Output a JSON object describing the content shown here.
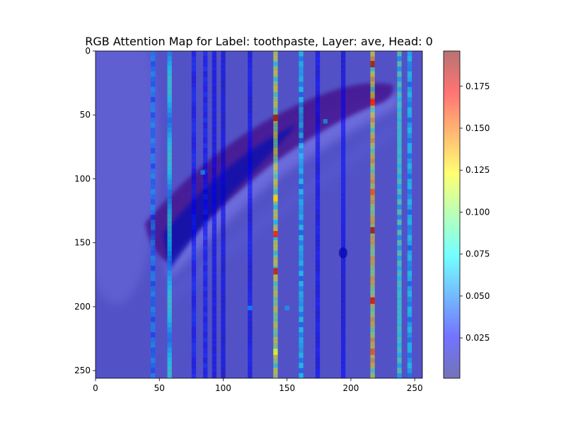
{
  "chart_data": {
    "type": "heatmap",
    "title": "RGB Attention Map for Label: toothpaste, Layer: ave, Head: 0",
    "xlabel": "",
    "ylabel": "",
    "xlim": [
      0,
      256
    ],
    "ylim": [
      0,
      256
    ],
    "y_inverted": true,
    "x_ticks": [
      0,
      50,
      100,
      150,
      200,
      250
    ],
    "y_ticks": [
      0,
      50,
      100,
      150,
      200,
      250
    ],
    "colorbar": {
      "range": [
        0.001,
        0.196
      ],
      "ticks": [
        0.025,
        0.05,
        0.075,
        0.1,
        0.125,
        0.15,
        0.175
      ],
      "tick_labels": [
        "0.025",
        "0.050",
        "0.075",
        "0.100",
        "0.125",
        "0.150",
        "0.175"
      ],
      "colormap": "jet",
      "alpha": 0.5
    },
    "background_image": "toothpaste tube photo (grayscale) overlaid",
    "attention_columns": [
      {
        "x": 45,
        "level": 0.045
      },
      {
        "x": 58,
        "level": 0.065
      },
      {
        "x": 77,
        "level": 0.025
      },
      {
        "x": 86,
        "level": 0.025
      },
      {
        "x": 93,
        "level": 0.02
      },
      {
        "x": 100,
        "level": 0.018
      },
      {
        "x": 121,
        "level": 0.022
      },
      {
        "x": 141,
        "level": 0.1,
        "hotspots": [
          {
            "y": 52,
            "level": 0.19
          },
          {
            "y": 115,
            "level": 0.13
          },
          {
            "y": 143,
            "level": 0.17
          },
          {
            "y": 172,
            "level": 0.18
          },
          {
            "y": 235,
            "level": 0.12
          }
        ]
      },
      {
        "x": 161,
        "level": 0.06
      },
      {
        "x": 174,
        "level": 0.022
      },
      {
        "x": 194,
        "level": 0.022
      },
      {
        "x": 217,
        "level": 0.11,
        "hotspots": [
          {
            "y": 10,
            "level": 0.19
          },
          {
            "y": 40,
            "level": 0.17
          },
          {
            "y": 110,
            "level": 0.16
          },
          {
            "y": 140,
            "level": 0.19
          },
          {
            "y": 195,
            "level": 0.18
          },
          {
            "y": 235,
            "level": 0.16
          }
        ]
      },
      {
        "x": 238,
        "level": 0.075
      },
      {
        "x": 246,
        "level": 0.06
      }
    ],
    "sparse_row_marks": [
      {
        "x": 121,
        "y": 201
      },
      {
        "x": 150,
        "y": 201
      },
      {
        "x": 84,
        "y": 95
      },
      {
        "x": 180,
        "y": 55
      }
    ]
  }
}
